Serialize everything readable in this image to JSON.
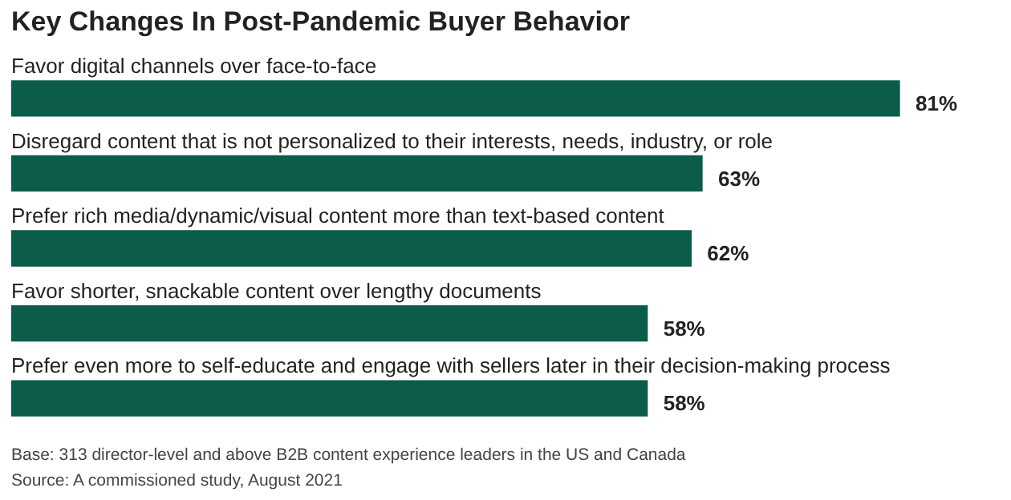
{
  "chart_data": {
    "type": "bar",
    "orientation": "horizontal",
    "title": "Key Changes In Post-Pandemic Buyer Behavior",
    "categories": [
      "Favor digital channels over face-to-face",
      "Disregard content that is not personalized to their interests, needs, industry, or role",
      "Prefer rich media/dynamic/visual content more than text-based content",
      "Favor shorter, snackable content over lengthy documents",
      "Prefer even more to self-educate and engage with sellers later in their decision-making process"
    ],
    "values": [
      81,
      63,
      62,
      58,
      58
    ],
    "color": "#0b5c49",
    "data_labels": true,
    "value_labels": [
      "81%",
      "63%",
      "62%",
      "58%",
      "58%"
    ],
    "annotations": [
      "Base: 313 director-level and above B2B content experience leaders in the US and Canada",
      "Source: A commissioned study, August 2021"
    ]
  }
}
